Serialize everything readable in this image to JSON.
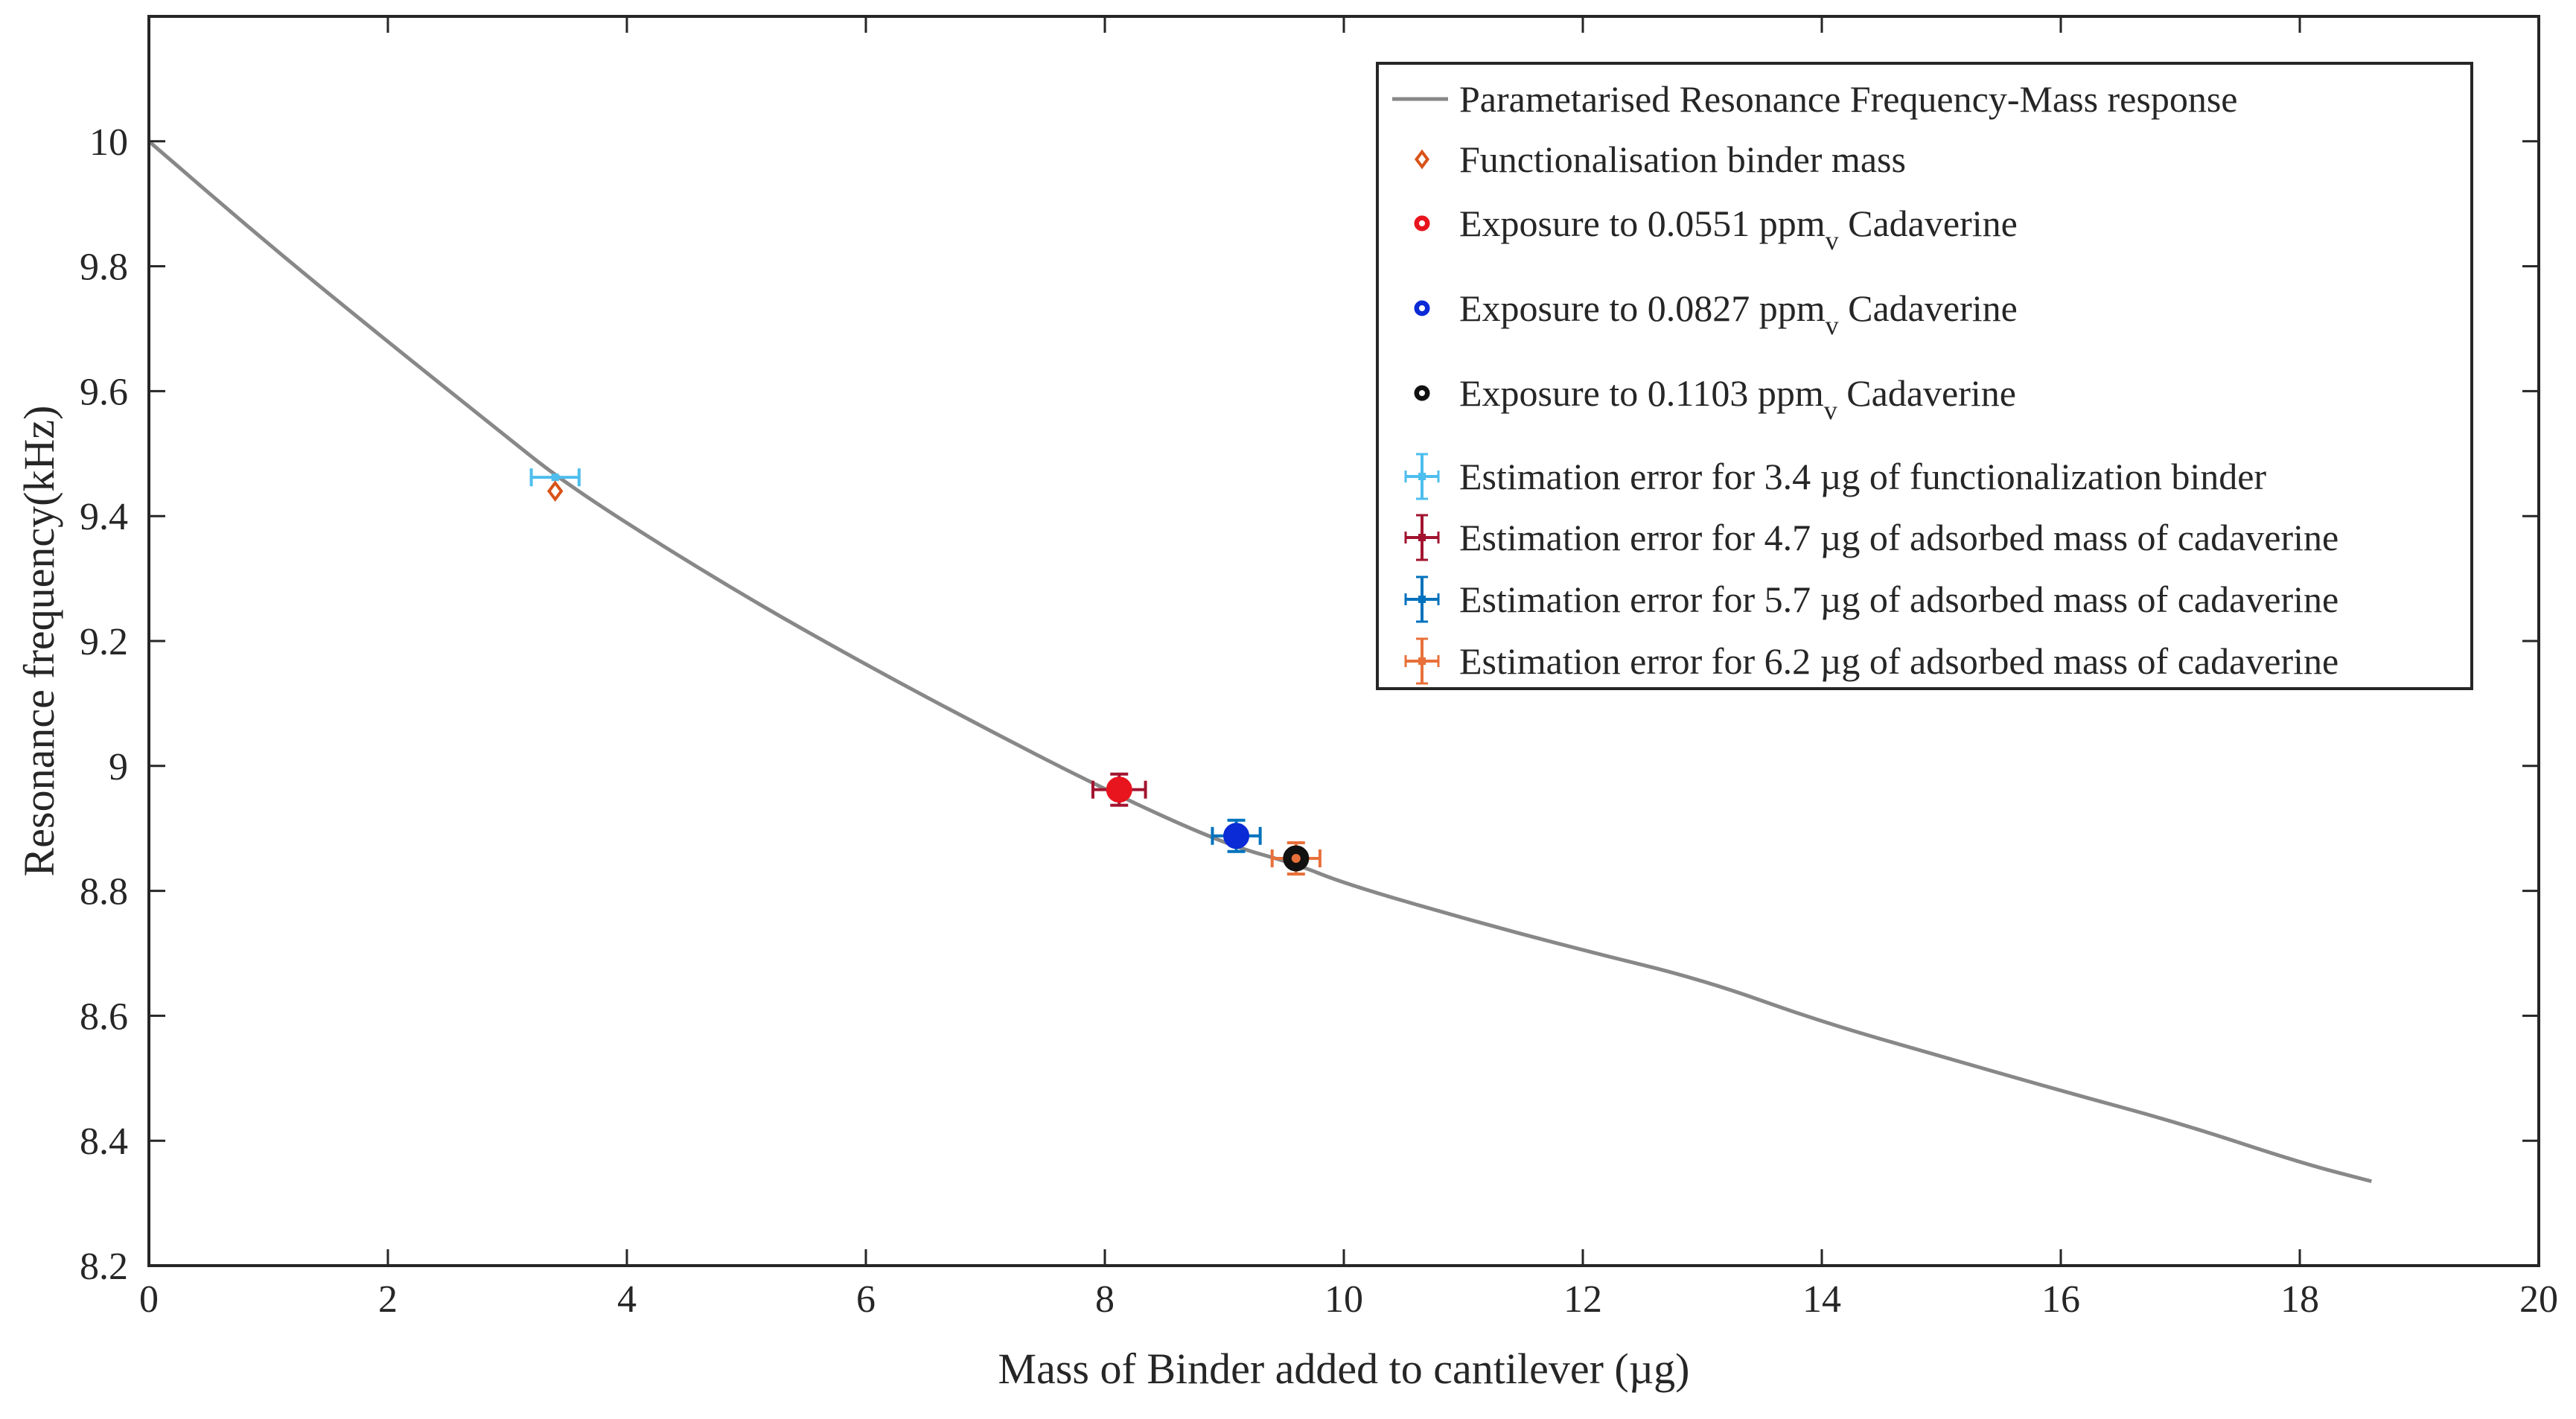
{
  "chart_data": {
    "type": "scatter",
    "xlabel": "Mass of Binder added to cantilever (µg)",
    "ylabel": "Resonance frequency(kHz)",
    "xlim": [
      0,
      20
    ],
    "ylim": [
      8.2,
      10.2
    ],
    "x_ticks": [
      0,
      2,
      4,
      6,
      8,
      10,
      12,
      14,
      16,
      18,
      20
    ],
    "y_ticks": [
      8.2,
      8.4,
      8.6,
      8.8,
      9,
      9.2,
      9.4,
      9.6,
      9.8,
      10
    ],
    "x_tick_labels": [
      "0",
      "2",
      "4",
      "6",
      "8",
      "10",
      "12",
      "14",
      "16",
      "18",
      "20"
    ],
    "y_tick_labels": [
      "8.2",
      "8.4",
      "8.6",
      "8.8",
      "9",
      "9.2",
      "9.4",
      "9.6",
      "9.8",
      "10"
    ],
    "grid": false,
    "legend_position": "top-right",
    "colors": {
      "curve": "#888888",
      "binder": "#D95319",
      "red": "#E8141E",
      "blue": "#0A2BD6",
      "black": "#111111",
      "err_binder": "#4DBEEE",
      "err_4_7": "#A2142F",
      "err_5_7": "#0072BD",
      "err_6_2": "#E8703A",
      "axis": "#262626"
    },
    "series": [
      {
        "name": "Parametarised Resonance Frequency-Mass response",
        "kind": "line",
        "color": "#888888",
        "x": [
          0,
          1,
          2,
          3,
          3.4,
          4,
          5,
          6,
          7,
          8,
          9,
          9.6,
          10,
          11,
          12,
          13,
          14,
          15,
          16,
          17,
          18,
          18.6
        ],
        "y": [
          10.0,
          9.835,
          9.679,
          9.526,
          9.465,
          9.388,
          9.27,
          9.162,
          9.06,
          8.962,
          8.875,
          8.843,
          8.812,
          8.756,
          8.705,
          8.658,
          8.59,
          8.535,
          8.48,
          8.428,
          8.365,
          8.335
        ]
      },
      {
        "name": "Functionalisation binder mass",
        "kind": "marker",
        "marker": "diamond",
        "color": "#D95319",
        "x": [
          3.4
        ],
        "y": [
          9.44
        ]
      },
      {
        "name": "Exposure to 0.0551 ppm",
        "subscript": "v",
        "suffix": " Cadaverine",
        "kind": "marker",
        "marker": "circle",
        "color": "#E8141E",
        "x": [
          8.12
        ],
        "y": [
          8.962
        ]
      },
      {
        "name": "Exposure to 0.0827 ppm",
        "subscript": "v",
        "suffix": " Cadaverine",
        "kind": "marker",
        "marker": "circle",
        "color": "#0A2BD6",
        "x": [
          9.1
        ],
        "y": [
          8.888
        ]
      },
      {
        "name": "Exposure to 0.1103 ppm",
        "subscript": "v",
        "suffix": " Cadaverine",
        "kind": "marker",
        "marker": "circle",
        "color": "#111111",
        "x": [
          9.6
        ],
        "y": [
          8.852
        ]
      },
      {
        "name": "Estimation error for 3.4 µg of functionalization binder",
        "kind": "errorbar",
        "color": "#4DBEEE",
        "x": [
          3.4
        ],
        "y": [
          9.462
        ],
        "xerr": [
          0.2
        ],
        "yerr": [
          0.0
        ]
      },
      {
        "name": "Estimation error for 4.7 µg of adsorbed mass of cadaverine",
        "kind": "errorbar",
        "color": "#A2142F",
        "x": [
          8.12
        ],
        "y": [
          8.962
        ],
        "xerr": [
          0.22
        ],
        "yerr": [
          0.025
        ]
      },
      {
        "name": "Estimation error for 5.7 µg of adsorbed mass of cadaverine",
        "kind": "errorbar",
        "color": "#0072BD",
        "x": [
          9.1
        ],
        "y": [
          8.888
        ],
        "xerr": [
          0.2
        ],
        "yerr": [
          0.025
        ]
      },
      {
        "name": "Estimation error for 6.2 µg of adsorbed mass of cadaverine",
        "kind": "errorbar",
        "color": "#E8703A",
        "x": [
          9.6
        ],
        "y": [
          8.852
        ],
        "xerr": [
          0.2
        ],
        "yerr": [
          0.025
        ]
      }
    ]
  }
}
